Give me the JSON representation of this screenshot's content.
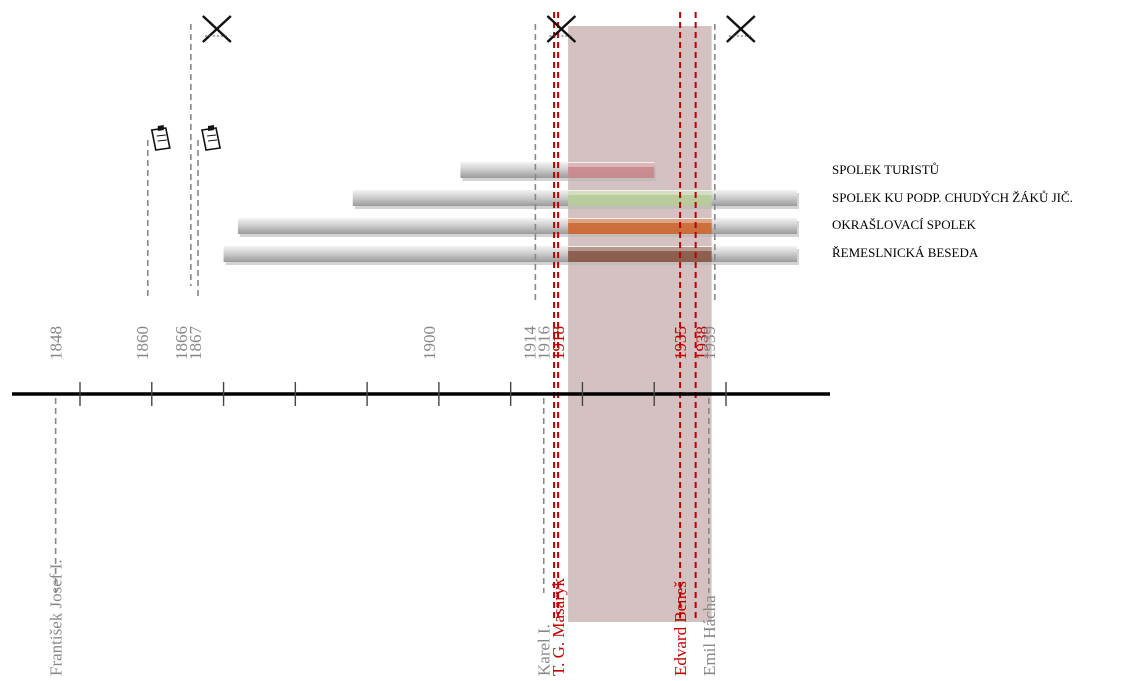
{
  "legend": {
    "items": [
      "SPOLEK TURISTŮ",
      "SPOLEK KU PODP. CHUDÝCH ŽÁKŮ JIČ.",
      "OKRAŠLOVACÍ SPOLEK",
      "ŘEMESLNICKÁ BESEDA"
    ]
  },
  "timeline": {
    "year_labels": [
      {
        "text": "1848",
        "year": 1848,
        "color": "#888888"
      },
      {
        "text": "1860",
        "year": 1860,
        "color": "#888888"
      },
      {
        "text": "1866",
        "year": 1866,
        "color": "#888888"
      },
      {
        "text": "1867",
        "year": 1867,
        "color": "#888888"
      },
      {
        "text": "1900",
        "year": 1900,
        "color": "#888888"
      },
      {
        "text": "1914",
        "year": 1914,
        "color": "#888888"
      },
      {
        "text": "1916",
        "year": 1916,
        "color": "#888888"
      },
      {
        "text": "1918",
        "year": 1918,
        "color": "#c00000"
      },
      {
        "text": "1935",
        "year": 1935,
        "color": "#c00000"
      },
      {
        "text": "1938",
        "year": 1938,
        "color": "#c00000"
      },
      {
        "text": "1939",
        "year": 1939,
        "color": "#888888"
      }
    ],
    "tick_years": [
      1850,
      1860,
      1870,
      1880,
      1890,
      1900,
      1910,
      1920,
      1930,
      1940
    ],
    "period": {
      "start": 1918,
      "end": 1938,
      "color": "#d4c2c2"
    }
  },
  "persons": [
    {
      "name": "František Josef I.",
      "year": 1848,
      "color": "#888888"
    },
    {
      "name": "Karel I.",
      "year": 1916,
      "color": "#888888"
    },
    {
      "name": "T. G. Masaryk",
      "year": 1918,
      "color": "#c00000"
    },
    {
      "name": "Edvard Beneš",
      "year": 1935,
      "color": "#c00000"
    },
    {
      "name": "Emil Hácha",
      "year": 1939,
      "color": "#888888"
    }
  ],
  "events": [
    {
      "type": "document",
      "year": 1860
    },
    {
      "type": "document",
      "year": 1867
    },
    {
      "type": "war",
      "year": 1866
    },
    {
      "type": "war",
      "year": 1914
    },
    {
      "type": "war",
      "year": 1939
    }
  ],
  "societies": [
    {
      "name": "SPOLEK TURISTŮ",
      "start": 1903,
      "end": 1930,
      "color": "#c98a8e"
    },
    {
      "name": "SPOLEK KU PODP. CHUDÝCH ŽÁKŮ JIČ.",
      "start": 1888,
      "end": 1950,
      "color": "#b7cc9a"
    },
    {
      "name": "OKRAŠLOVACÍ SPOLEK",
      "start": 1872,
      "end": 1950,
      "color": "#cc6a36"
    },
    {
      "name": "ŘEMESLNICKÁ BESEDA",
      "start": 1870,
      "end": 1950,
      "color": "#8a5a48"
    }
  ]
}
